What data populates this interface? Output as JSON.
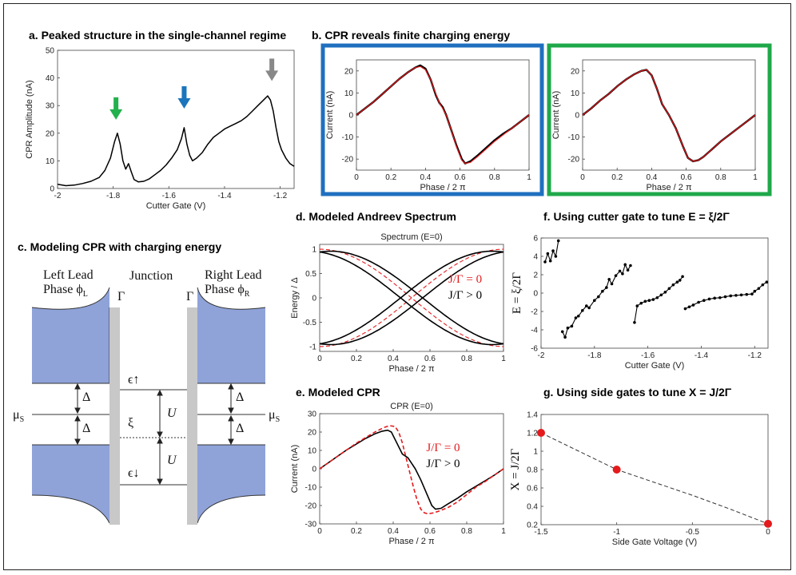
{
  "colors": {
    "green": "#22b14c",
    "blue": "#1b75bc",
    "gray": "#888888",
    "red": "#e41a1c",
    "black": "#000000",
    "lead": "#8fa3d9",
    "barrier": "#c8c8c8",
    "box_blue": "#1f6fbf",
    "box_green": "#1fa84a"
  },
  "panels": {
    "a": {
      "title": "a. Peaked structure in the single-channel regime"
    },
    "b": {
      "title": "b. CPR reveals  finite charging energy"
    },
    "c": {
      "title": "c. Modeling CPR with charging energy"
    },
    "d": {
      "title": "d. Modeled Andreev Spectrum"
    },
    "e": {
      "title": "e. Modeled CPR"
    },
    "f": {
      "title": "f. Using cutter gate to tune E = ξ/2Γ"
    },
    "g": {
      "title": "g. Using side gates to tune X = J/2Γ"
    }
  },
  "diagram": {
    "left_lead": "Left Lead",
    "left_phase": "Phase ϕ",
    "left_phase_sub": "L",
    "junction": "Junction",
    "right_lead": "Right Lead",
    "right_phase": "Phase ϕ",
    "right_phase_sub": "R",
    "gamma": "Γ",
    "delta": "Δ",
    "mu": "μ",
    "mu_sub": "S",
    "eps_up": "ϵ↑",
    "eps_down": "ϵ↓",
    "xi": "ξ",
    "u": "U"
  },
  "chart_data": [
    {
      "id": "a",
      "type": "line",
      "xlabel": "Cutter Gate (V)",
      "ylabel": "CPR Amplitude (nA)",
      "xlim": [
        -2,
        -1.15
      ],
      "ylim": [
        0,
        50
      ],
      "xticks": [
        "-2",
        "-1.8",
        "-1.6",
        "-1.4",
        "-1.2"
      ],
      "xtick_values": [
        -2,
        -1.8,
        -1.6,
        -1.4,
        -1.2
      ],
      "yticks": [
        "0",
        "10",
        "20",
        "30",
        "40",
        "50"
      ],
      "ytick_values": [
        0,
        10,
        20,
        30,
        40,
        50
      ],
      "x": [
        -2.0,
        -1.97,
        -1.94,
        -1.91,
        -1.88,
        -1.85,
        -1.83,
        -1.81,
        -1.795,
        -1.785,
        -1.775,
        -1.765,
        -1.755,
        -1.745,
        -1.735,
        -1.725,
        -1.71,
        -1.69,
        -1.67,
        -1.65,
        -1.63,
        -1.61,
        -1.59,
        -1.57,
        -1.555,
        -1.545,
        -1.535,
        -1.525,
        -1.515,
        -1.5,
        -1.48,
        -1.46,
        -1.44,
        -1.42,
        -1.4,
        -1.38,
        -1.36,
        -1.34,
        -1.32,
        -1.3,
        -1.28,
        -1.26,
        -1.245,
        -1.235,
        -1.225,
        -1.215,
        -1.205,
        -1.195,
        -1.18,
        -1.165,
        -1.15
      ],
      "y": [
        1.5,
        1.0,
        1.2,
        1.8,
        2.6,
        4.0,
        6.5,
        11,
        17,
        20,
        16,
        10,
        7,
        9,
        6,
        3.2,
        2.4,
        2.6,
        3.5,
        5.0,
        6.5,
        8.5,
        11,
        14,
        18,
        22,
        16,
        12,
        10,
        11,
        13,
        16,
        18.5,
        20,
        21.5,
        22.5,
        23.5,
        24.5,
        26,
        28,
        30,
        32,
        33.5,
        32,
        28,
        22,
        17,
        14,
        11,
        9,
        8
      ],
      "arrows": [
        {
          "x": -1.79,
          "color": "green"
        },
        {
          "x": -1.545,
          "color": "blue"
        },
        {
          "x": -1.23,
          "color": "gray"
        }
      ]
    },
    {
      "id": "b1",
      "type": "line",
      "xlabel": "Phase / 2 π",
      "ylabel": "Current (nA)",
      "xlim": [
        0,
        1
      ],
      "ylim": [
        -25,
        25
      ],
      "xticks": [
        "0",
        "0.2",
        "0.4",
        "0.6",
        "0.8",
        "1"
      ],
      "xtick_values": [
        0,
        0.2,
        0.4,
        0.6,
        0.8,
        1
      ],
      "yticks": [
        "-20",
        "-10",
        "0",
        "10",
        "20"
      ],
      "ytick_values": [
        -20,
        -10,
        0,
        10,
        20
      ],
      "series": [
        {
          "name": "data",
          "color": "black",
          "x": [
            0,
            0.05,
            0.1,
            0.15,
            0.2,
            0.25,
            0.3,
            0.34,
            0.37,
            0.4,
            0.43,
            0.46,
            0.48,
            0.5,
            0.52,
            0.55,
            0.58,
            0.61,
            0.63,
            0.66,
            0.7,
            0.75,
            0.8,
            0.85,
            0.9,
            0.95,
            1
          ],
          "y": [
            0,
            3,
            6,
            9.5,
            13,
            16.5,
            19.5,
            21.5,
            22.5,
            21,
            16,
            9,
            5.5,
            3.5,
            0,
            -7,
            -14,
            -20,
            -22,
            -21,
            -18.5,
            -15,
            -11.5,
            -8.5,
            -6,
            -3,
            0
          ]
        },
        {
          "name": "fit",
          "color": "red",
          "x": [
            0,
            0.05,
            0.1,
            0.15,
            0.2,
            0.25,
            0.3,
            0.34,
            0.37,
            0.4,
            0.43,
            0.46,
            0.48,
            0.5,
            0.52,
            0.55,
            0.58,
            0.61,
            0.63,
            0.66,
            0.7,
            0.75,
            0.8,
            0.85,
            0.9,
            0.95,
            1
          ],
          "y": [
            0,
            3,
            6,
            9.5,
            13,
            16.5,
            19.5,
            21.5,
            22,
            20.5,
            16,
            9.5,
            5.5,
            3,
            0,
            -7,
            -14.5,
            -20.5,
            -22,
            -21.5,
            -19,
            -15.5,
            -12,
            -9,
            -6,
            -3,
            0
          ]
        }
      ]
    },
    {
      "id": "b2",
      "type": "line",
      "xlabel": "Phase / 2 π",
      "ylabel": "Current (nA)",
      "xlim": [
        0,
        1
      ],
      "ylim": [
        -25,
        25
      ],
      "xticks": [
        "0",
        "0.2",
        "0.4",
        "0.6",
        "0.8",
        "1"
      ],
      "xtick_values": [
        0,
        0.2,
        0.4,
        0.6,
        0.8,
        1
      ],
      "yticks": [
        "-20",
        "-10",
        "0",
        "10",
        "20"
      ],
      "ytick_values": [
        -20,
        -10,
        0,
        10,
        20
      ],
      "series": [
        {
          "name": "data",
          "color": "black",
          "x": [
            0,
            0.05,
            0.1,
            0.15,
            0.2,
            0.25,
            0.3,
            0.34,
            0.37,
            0.4,
            0.43,
            0.46,
            0.5,
            0.54,
            0.58,
            0.61,
            0.64,
            0.67,
            0.7,
            0.75,
            0.8,
            0.85,
            0.9,
            0.95,
            1
          ],
          "y": [
            0,
            3,
            6.5,
            9.5,
            13,
            16,
            18.5,
            20,
            20.5,
            18,
            12,
            5,
            0,
            -6,
            -14,
            -19.5,
            -21,
            -20.5,
            -19,
            -15.5,
            -12,
            -9,
            -6,
            -3,
            0
          ]
        },
        {
          "name": "fit",
          "color": "red",
          "x": [
            0,
            0.05,
            0.1,
            0.15,
            0.2,
            0.25,
            0.3,
            0.34,
            0.37,
            0.4,
            0.43,
            0.46,
            0.5,
            0.54,
            0.58,
            0.61,
            0.64,
            0.67,
            0.7,
            0.75,
            0.8,
            0.85,
            0.9,
            0.95,
            1
          ],
          "y": [
            0,
            3,
            6.5,
            9.5,
            13,
            16,
            18.5,
            20,
            20.5,
            18,
            12,
            5,
            0,
            -6,
            -14,
            -19.5,
            -21,
            -20.5,
            -19,
            -15.5,
            -12,
            -9,
            -6,
            -3,
            0
          ]
        }
      ]
    },
    {
      "id": "d",
      "type": "line",
      "title": "Spectrum (E=0)",
      "xlabel": "Phase / 2 π",
      "ylabel": "Energy / Δ",
      "xlim": [
        0,
        1
      ],
      "ylim": [
        -1.1,
        1.1
      ],
      "xticks": [
        "0",
        "0.2",
        "0.4",
        "0.6",
        "0.8",
        "1"
      ],
      "xtick_values": [
        0,
        0.2,
        0.4,
        0.6,
        0.8,
        1
      ],
      "yticks": [
        "-1",
        "-0.5",
        "0",
        "0.5",
        "1"
      ],
      "ytick_values": [
        -1,
        -0.5,
        0,
        0.5,
        1
      ],
      "legend": [
        {
          "label": "J/Γ = 0",
          "color": "red"
        },
        {
          "label": "J/Γ > 0",
          "color": "black"
        }
      ],
      "model": {
        "solid_amplitude": 1.0,
        "solid_split": 0.08,
        "dashed_amplitude": 1.0
      }
    },
    {
      "id": "e",
      "type": "line",
      "title": "CPR (E=0)",
      "xlabel": "Phase / 2 π",
      "ylabel": "Current (nA)",
      "xlim": [
        0,
        1
      ],
      "ylim": [
        -30,
        30
      ],
      "xticks": [
        "0",
        "0.2",
        "0.4",
        "0.6",
        "0.8",
        "1"
      ],
      "xtick_values": [
        0,
        0.2,
        0.4,
        0.6,
        0.8,
        1
      ],
      "yticks": [
        "-30",
        "-20",
        "-10",
        "0",
        "10",
        "20",
        "30"
      ],
      "ytick_values": [
        -30,
        -20,
        -10,
        0,
        10,
        20,
        30
      ],
      "legend": [
        {
          "label": "J/Γ = 0",
          "color": "red"
        },
        {
          "label": "J/Γ > 0",
          "color": "black"
        }
      ],
      "series": [
        {
          "name": "J/Γ > 0",
          "color": "black",
          "dash": false,
          "x": [
            0,
            0.05,
            0.1,
            0.15,
            0.2,
            0.25,
            0.3,
            0.34,
            0.37,
            0.39,
            0.42,
            0.45,
            0.48,
            0.5,
            0.52,
            0.55,
            0.58,
            0.61,
            0.63,
            0.66,
            0.7,
            0.75,
            0.8,
            0.85,
            0.9,
            0.95,
            1
          ],
          "y": [
            0,
            3.5,
            7,
            10.5,
            13.5,
            16.5,
            19,
            20.5,
            21,
            20,
            14,
            8,
            6,
            3,
            0,
            -6,
            -13,
            -20,
            -22,
            -21.5,
            -19,
            -16,
            -12.5,
            -9.5,
            -6.5,
            -3.5,
            0
          ]
        },
        {
          "name": "J/Γ = 0",
          "color": "red",
          "dash": true,
          "x": [
            0,
            0.05,
            0.1,
            0.15,
            0.2,
            0.25,
            0.3,
            0.35,
            0.38,
            0.41,
            0.43,
            0.45,
            0.47,
            0.49,
            0.5,
            0.51,
            0.53,
            0.55,
            0.57,
            0.59,
            0.62,
            0.65,
            0.7,
            0.75,
            0.8,
            0.85,
            0.9,
            0.95,
            1
          ],
          "y": [
            0,
            3.5,
            7,
            10.5,
            14,
            17,
            20,
            22.5,
            23.5,
            23,
            20,
            14,
            6,
            -2,
            -6,
            -10,
            -17,
            -22,
            -24,
            -24.5,
            -24,
            -23,
            -21,
            -18,
            -14,
            -10,
            -7,
            -3.5,
            0
          ]
        }
      ]
    },
    {
      "id": "f",
      "type": "scatter",
      "xlabel": "Cutter Gate (V)",
      "ylabel": "E = ξ/2Γ",
      "xlim": [
        -2,
        -1.15
      ],
      "ylim": [
        -6,
        6
      ],
      "xticks": [
        "-2",
        "-1.8",
        "-1.6",
        "-1.4",
        "-1.2"
      ],
      "xtick_values": [
        -2,
        -1.8,
        -1.6,
        -1.4,
        -1.2
      ],
      "yticks": [
        "-6",
        "-4",
        "-2",
        "0",
        "2",
        "4",
        "6"
      ],
      "ytick_values": [
        -6,
        -4,
        -2,
        0,
        2,
        4,
        6
      ],
      "series": [
        {
          "x": [
            -1.985,
            -1.975,
            -1.965,
            -1.955,
            -1.945,
            -1.935
          ],
          "y": [
            3.4,
            4.3,
            3.5,
            4.6,
            4.0,
            5.7
          ]
        },
        {
          "x": [
            -1.92,
            -1.91,
            -1.9,
            -1.885,
            -1.87,
            -1.86,
            -1.845,
            -1.83,
            -1.82,
            -1.8,
            -1.785,
            -1.77,
            -1.755,
            -1.745,
            -1.735,
            -1.72,
            -1.705,
            -1.695,
            -1.685,
            -1.675,
            -1.665
          ],
          "y": [
            -4.2,
            -4.8,
            -3.8,
            -3.6,
            -2.7,
            -2.5,
            -1.9,
            -1.4,
            -1.6,
            -0.8,
            -0.4,
            0.2,
            0.6,
            1.5,
            1.0,
            1.9,
            2.4,
            2.1,
            3.1,
            2.5,
            3.0
          ]
        },
        {
          "x": [
            -1.65,
            -1.64,
            -1.625,
            -1.61,
            -1.595,
            -1.58,
            -1.565,
            -1.55,
            -1.535,
            -1.52,
            -1.505,
            -1.49,
            -1.48,
            -1.47
          ],
          "y": [
            -3.2,
            -1.4,
            -1.1,
            -0.9,
            -0.8,
            -0.7,
            -0.5,
            -0.2,
            0.1,
            0.5,
            0.9,
            1.2,
            1.4,
            1.8
          ]
        },
        {
          "x": [
            -1.46,
            -1.445,
            -1.43,
            -1.41,
            -1.39,
            -1.37,
            -1.35,
            -1.33,
            -1.31,
            -1.29,
            -1.27,
            -1.25,
            -1.23,
            -1.21,
            -1.2,
            -1.185,
            -1.17,
            -1.155
          ],
          "y": [
            -1.7,
            -1.5,
            -1.3,
            -1.0,
            -0.8,
            -0.65,
            -0.55,
            -0.5,
            -0.4,
            -0.3,
            -0.25,
            -0.2,
            -0.15,
            -0.1,
            0.2,
            0.5,
            0.9,
            1.2
          ]
        }
      ]
    },
    {
      "id": "g",
      "type": "scatter",
      "xlabel": "Side Gate Voltage (V)",
      "ylabel": "X = J/2Γ",
      "xlim": [
        -1.5,
        0
      ],
      "ylim": [
        0.2,
        1.4
      ],
      "xticks": [
        "-1.5",
        "-1",
        "-0.5",
        "0"
      ],
      "xtick_values": [
        -1.5,
        -1,
        -0.5,
        0
      ],
      "yticks": [
        "0.2",
        "0.4",
        "0.6",
        "0.8",
        "1",
        "1.2",
        "1.4"
      ],
      "ytick_values": [
        0.2,
        0.4,
        0.6,
        0.8,
        1.0,
        1.2,
        1.4
      ],
      "points": {
        "x": [
          -1.5,
          -1.0,
          0.0
        ],
        "y": [
          1.2,
          0.8,
          0.21
        ]
      },
      "trend": {
        "x": [
          -1.5,
          -1.25,
          -1.0,
          -0.75,
          -0.5,
          -0.25,
          0.0
        ],
        "y": [
          1.2,
          1.0,
          0.8,
          0.66,
          0.52,
          0.37,
          0.21
        ]
      }
    }
  ]
}
